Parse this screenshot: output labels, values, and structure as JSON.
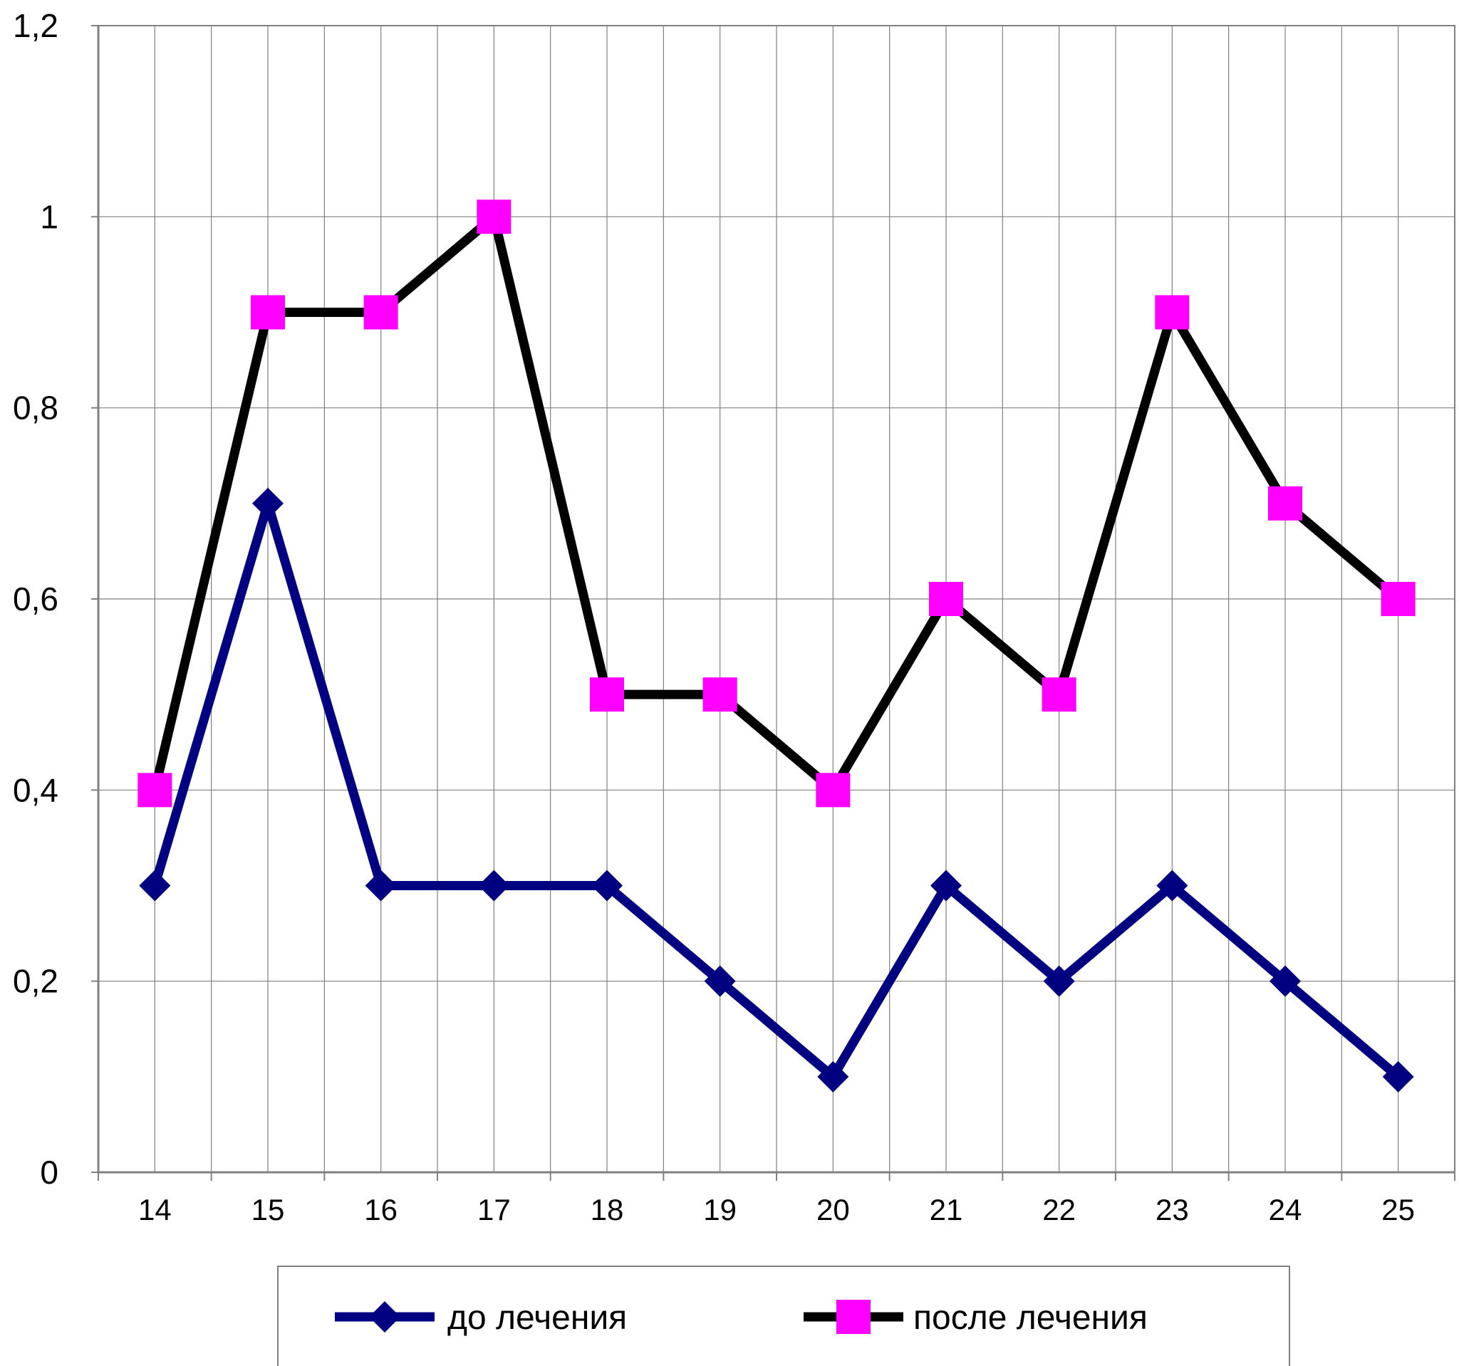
{
  "chart_data": {
    "type": "line",
    "title": "",
    "xlabel": "",
    "ylabel": "",
    "categories": [
      "14",
      "15",
      "16",
      "17",
      "18",
      "19",
      "20",
      "21",
      "22",
      "23",
      "24",
      "25"
    ],
    "ylim": [
      0,
      1.2
    ],
    "yticks": [
      0,
      0.2,
      0.4,
      0.6,
      0.8,
      1,
      1.2
    ],
    "ytick_labels": [
      "0",
      "0,2",
      "0,4",
      "0,6",
      "0,8",
      "1",
      "1,2"
    ],
    "grid": true,
    "legend_position": "bottom",
    "series": [
      {
        "name": "до лечения",
        "values": [
          0.3,
          0.7,
          0.3,
          0.3,
          0.3,
          0.2,
          0.1,
          0.3,
          0.2,
          0.3,
          0.2,
          0.1
        ],
        "line_color": "#000080",
        "marker_color": "#000080",
        "marker": "diamond"
      },
      {
        "name": "после лечения",
        "values": [
          0.4,
          0.9,
          0.9,
          1.0,
          0.5,
          0.5,
          0.4,
          0.6,
          0.5,
          0.9,
          0.7,
          0.6
        ],
        "line_color": "#000000",
        "marker_color": "#ff00ff",
        "marker": "square"
      }
    ]
  }
}
